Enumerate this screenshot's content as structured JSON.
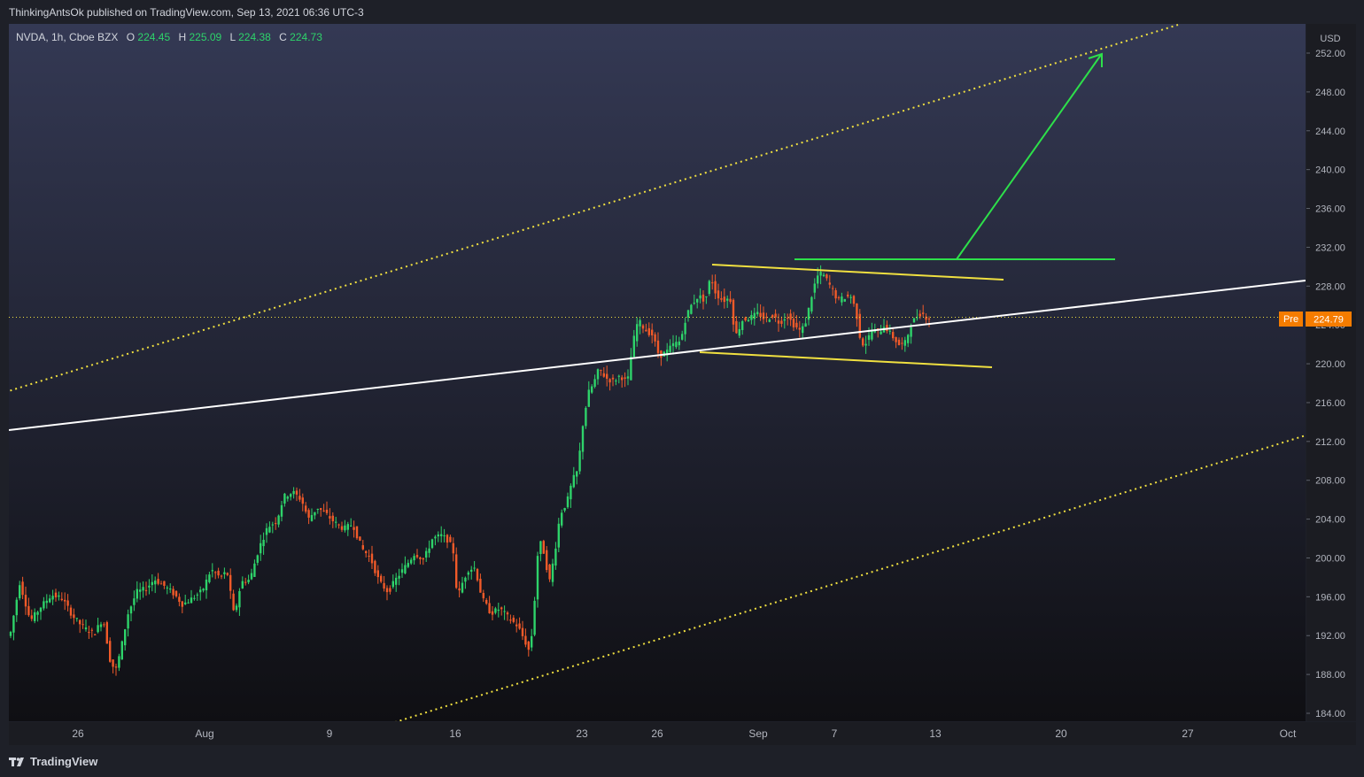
{
  "header": {
    "published_text": "ThinkingAntsOk published on TradingView.com, Sep 13, 2021 06:36 UTC-3"
  },
  "legend": {
    "symbol": "NVDA, 1h, Cboe BZX",
    "o_label": "O",
    "o_value": "224.45",
    "h_label": "H",
    "h_value": "225.09",
    "l_label": "L",
    "l_value": "224.38",
    "c_label": "C",
    "c_value": "224.73"
  },
  "price_tag": {
    "label": "Pre",
    "value": "224.79"
  },
  "footer": {
    "brand": "TradingView"
  },
  "colors": {
    "bg_top": "#343954",
    "bg_bottom": "#0f0f13",
    "up": "#26a69a",
    "down": "#ef5350",
    "up_bright": "#2ed36a",
    "down_bright": "#f15a29",
    "yellow": "#f0e040",
    "white": "#ffffff",
    "green": "#2de04a",
    "tag": "#f57c00"
  },
  "chart_data": {
    "type": "candlestick",
    "currency": "USD",
    "y_ticks": [
      184,
      188,
      192,
      196,
      200,
      204,
      208,
      212,
      216,
      220,
      224,
      228,
      232,
      236,
      240,
      244,
      248,
      252
    ],
    "ylim": [
      183.2,
      255.2
    ],
    "x_ticks": [
      "26",
      "Aug",
      "9",
      "16",
      "23",
      "26",
      "Sep",
      "7",
      "13",
      "20",
      "27",
      "Oct"
    ],
    "last_price": 224.79,
    "price_path": [
      [
        0,
        194.8
      ],
      [
        12,
        191.5
      ],
      [
        24,
        197.5
      ],
      [
        36,
        193.5
      ],
      [
        48,
        195.0
      ],
      [
        60,
        196.2
      ],
      [
        72,
        195.8
      ],
      [
        84,
        194.0
      ],
      [
        96,
        192.8
      ],
      [
        108,
        192.2
      ],
      [
        118,
        193.8
      ],
      [
        126,
        189.5
      ],
      [
        132,
        188.3
      ],
      [
        138,
        190.5
      ],
      [
        146,
        194.2
      ],
      [
        156,
        196.5
      ],
      [
        166,
        196.8
      ],
      [
        176,
        197.8
      ],
      [
        186,
        197.2
      ],
      [
        198,
        196.3
      ],
      [
        208,
        195.2
      ],
      [
        218,
        195.8
      ],
      [
        230,
        196.6
      ],
      [
        240,
        198.8
      ],
      [
        250,
        198.0
      ],
      [
        258,
        198.6
      ],
      [
        266,
        194.0
      ],
      [
        274,
        197.5
      ],
      [
        284,
        197.8
      ],
      [
        294,
        201.0
      ],
      [
        304,
        203.2
      ],
      [
        314,
        203.8
      ],
      [
        322,
        206.3
      ],
      [
        332,
        206.8
      ],
      [
        342,
        206.0
      ],
      [
        350,
        204.0
      ],
      [
        360,
        205.2
      ],
      [
        370,
        204.5
      ],
      [
        380,
        203.6
      ],
      [
        390,
        203.0
      ],
      [
        400,
        203.5
      ],
      [
        410,
        201.0
      ],
      [
        420,
        200.0
      ],
      [
        430,
        197.5
      ],
      [
        440,
        196.5
      ],
      [
        450,
        198.0
      ],
      [
        460,
        199.2
      ],
      [
        470,
        200.5
      ],
      [
        480,
        199.8
      ],
      [
        490,
        202.0
      ],
      [
        500,
        202.3
      ],
      [
        508,
        201.8
      ],
      [
        514,
        200.5
      ],
      [
        518,
        195.8
      ],
      [
        524,
        197.5
      ],
      [
        530,
        198.8
      ],
      [
        538,
        199.0
      ],
      [
        546,
        195.8
      ],
      [
        556,
        194.3
      ],
      [
        566,
        194.8
      ],
      [
        576,
        193.8
      ],
      [
        586,
        193.0
      ],
      [
        594,
        191.5
      ],
      [
        600,
        190.2
      ],
      [
        604,
        194.0
      ],
      [
        610,
        202.0
      ],
      [
        616,
        200.5
      ],
      [
        622,
        197.5
      ],
      [
        628,
        200.5
      ],
      [
        634,
        204.5
      ],
      [
        642,
        205.8
      ],
      [
        648,
        208.0
      ],
      [
        654,
        209.0
      ],
      [
        660,
        214.0
      ],
      [
        666,
        217.0
      ],
      [
        672,
        218.0
      ],
      [
        678,
        219.5
      ],
      [
        686,
        218.5
      ],
      [
        694,
        218.2
      ],
      [
        702,
        218.8
      ],
      [
        710,
        218.0
      ],
      [
        716,
        222.0
      ],
      [
        722,
        224.5
      ],
      [
        730,
        223.5
      ],
      [
        738,
        223.0
      ],
      [
        746,
        220.8
      ],
      [
        754,
        221.2
      ],
      [
        762,
        222.0
      ],
      [
        770,
        222.3
      ],
      [
        776,
        224.8
      ],
      [
        782,
        226.0
      ],
      [
        790,
        227.0
      ],
      [
        798,
        226.5
      ],
      [
        804,
        229.0
      ],
      [
        810,
        227.2
      ],
      [
        818,
        226.5
      ],
      [
        826,
        226.8
      ],
      [
        832,
        222.8
      ],
      [
        840,
        224.5
      ],
      [
        850,
        224.8
      ],
      [
        858,
        225.2
      ],
      [
        866,
        224.5
      ],
      [
        874,
        225.0
      ],
      [
        882,
        224.2
      ],
      [
        890,
        225.0
      ],
      [
        898,
        224.0
      ],
      [
        906,
        223.3
      ],
      [
        912,
        224.5
      ],
      [
        918,
        227.0
      ],
      [
        924,
        229.0
      ],
      [
        930,
        229.3
      ],
      [
        936,
        228.5
      ],
      [
        942,
        227.5
      ],
      [
        948,
        226.5
      ],
      [
        954,
        226.8
      ],
      [
        962,
        227.0
      ],
      [
        968,
        225.5
      ],
      [
        974,
        222.0
      ],
      [
        980,
        222.2
      ],
      [
        986,
        223.5
      ],
      [
        994,
        223.2
      ],
      [
        1000,
        224.0
      ],
      [
        1006,
        223.2
      ],
      [
        1012,
        222.5
      ],
      [
        1018,
        221.8
      ],
      [
        1024,
        222.2
      ],
      [
        1030,
        224.0
      ],
      [
        1036,
        224.8
      ],
      [
        1042,
        225.3
      ],
      [
        1048,
        224.73
      ]
    ]
  }
}
